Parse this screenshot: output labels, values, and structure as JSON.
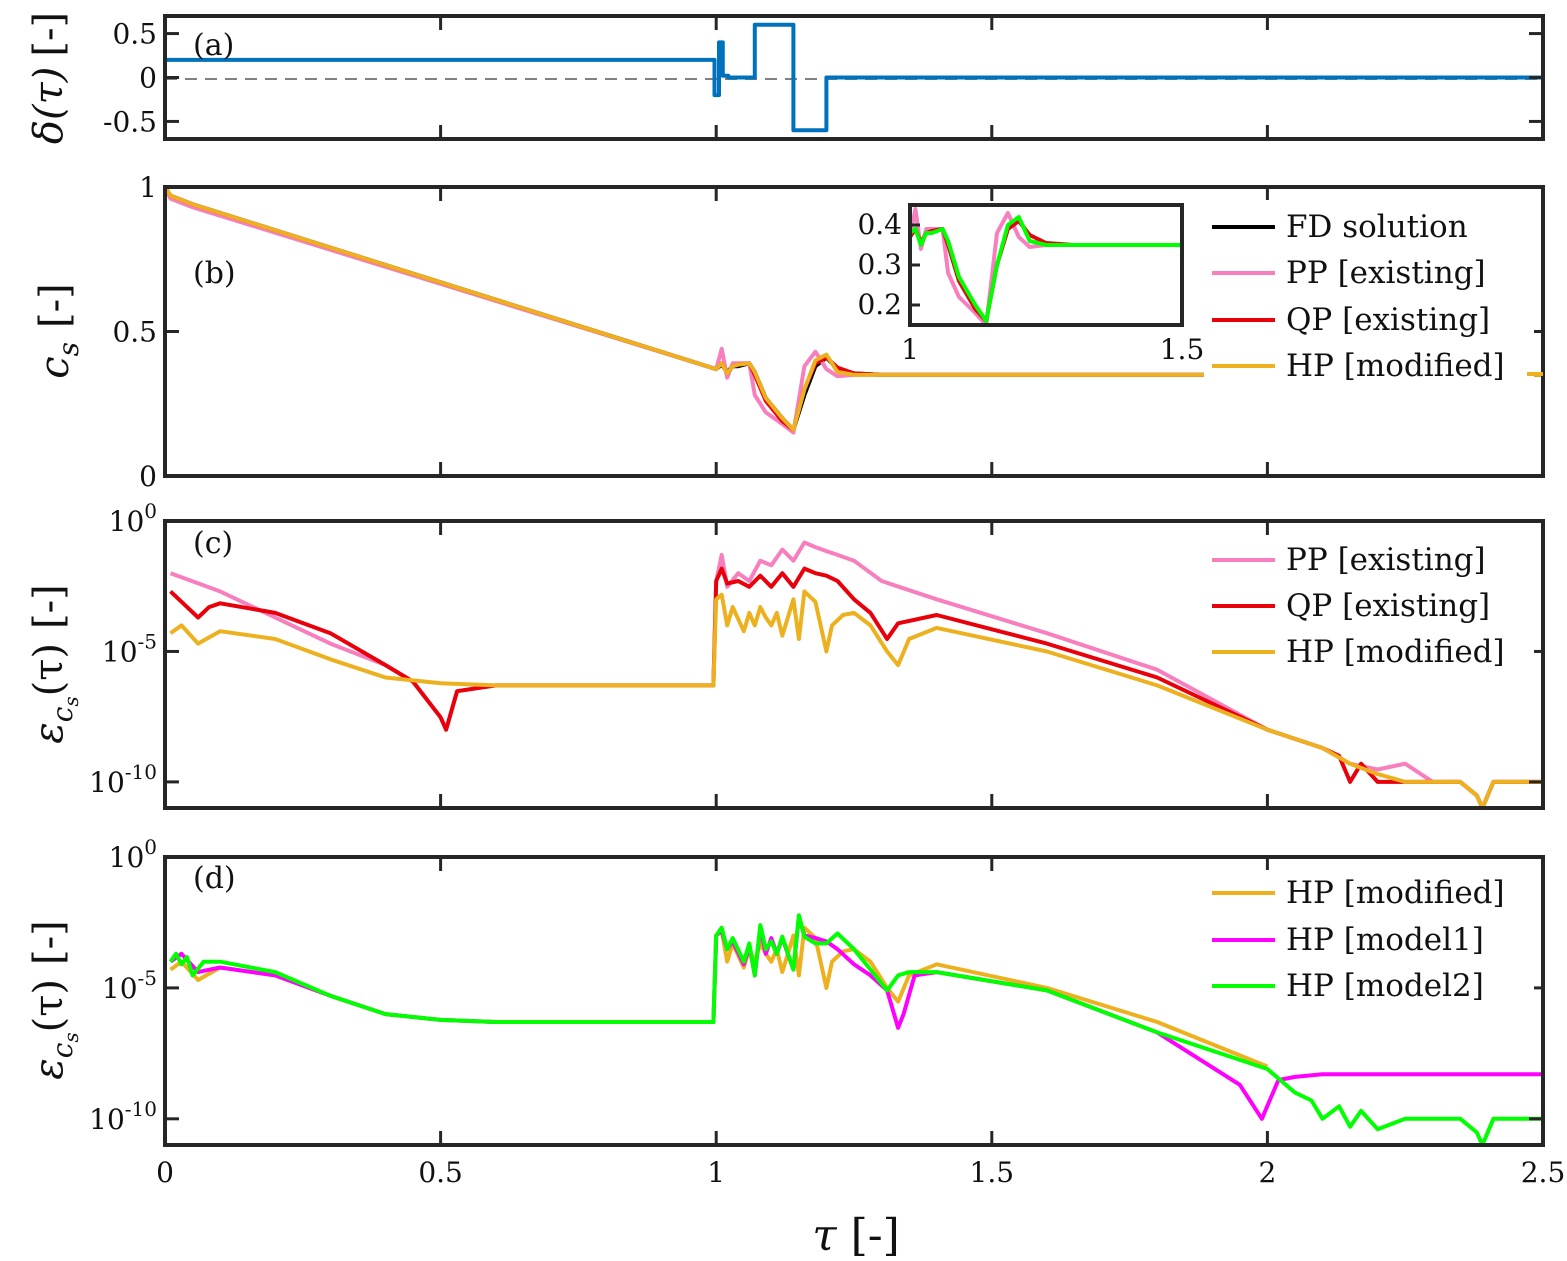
{
  "colors": {
    "fd": "#000000",
    "pp": "#f77fbe",
    "qp": "#e8000b",
    "hp": "#edb120",
    "model1": "#ff00ff",
    "model2": "#00ff00",
    "delta": "#0072bd",
    "axis": "#262626",
    "zero_line": "#808080"
  },
  "xaxis": {
    "label_sym": "τ",
    "label_unit": "[-]",
    "range": [
      0,
      2.5
    ],
    "ticks": [
      "0",
      "0.5",
      "1",
      "1.5",
      "2",
      "2.5"
    ]
  },
  "chart_data": [
    {
      "type": "line",
      "panel_label": "(a)",
      "ylabel": "δ(τ) [-]",
      "ylabel_sym": "δ(τ)",
      "ylabel_unit": "[-]",
      "ylim": [
        -0.7,
        0.7
      ],
      "yticks": [
        "0.5",
        "0",
        "-0.5"
      ],
      "reference_line": 0,
      "series": [
        {
          "id": "delta",
          "x": [
            0,
            0.997,
            0.997,
            1.005,
            1.005,
            1.012,
            1.012,
            1.022,
            1.022,
            1.07,
            1.07,
            1.14,
            1.14,
            1.2,
            1.2,
            2.5
          ],
          "y": [
            0.2,
            0.2,
            -0.2,
            -0.2,
            0.4,
            0.4,
            0.02,
            0.02,
            0.0,
            0.0,
            0.6,
            0.6,
            -0.6,
            -0.6,
            0.0,
            0.0
          ]
        }
      ]
    },
    {
      "type": "line",
      "panel_label": "(b)",
      "ylabel": "c_s [-]",
      "ylabel_sym": "c",
      "ylabel_sub": "s",
      "ylabel_unit": "[-]",
      "ylim": [
        0,
        1
      ],
      "yticks": [
        "1",
        "0.5",
        "0"
      ],
      "series": [
        {
          "id": "fd",
          "name": "FD solution",
          "x": [
            0,
            0.01,
            0.05,
            1.0,
            1.01,
            1.02,
            1.03,
            1.04,
            1.06,
            1.07,
            1.09,
            1.12,
            1.14,
            1.16,
            1.18,
            1.2,
            1.22,
            1.25,
            1.3,
            2.5
          ],
          "y": [
            1.0,
            0.97,
            0.94,
            0.37,
            0.385,
            0.36,
            0.38,
            0.38,
            0.39,
            0.36,
            0.27,
            0.2,
            0.16,
            0.28,
            0.38,
            0.41,
            0.37,
            0.355,
            0.35,
            0.35
          ]
        },
        {
          "id": "pp",
          "name": "PP [existing]",
          "x": [
            0,
            0.01,
            0.05,
            1.0,
            1.01,
            1.02,
            1.03,
            1.04,
            1.06,
            1.07,
            1.09,
            1.12,
            1.14,
            1.16,
            1.18,
            1.2,
            1.22,
            1.25,
            1.3,
            2.5
          ],
          "y": [
            1.0,
            0.96,
            0.93,
            0.37,
            0.44,
            0.34,
            0.39,
            0.39,
            0.39,
            0.28,
            0.22,
            0.18,
            0.15,
            0.38,
            0.43,
            0.37,
            0.345,
            0.35,
            0.35,
            0.35
          ]
        },
        {
          "id": "qp",
          "name": "QP [existing]",
          "x": [
            0,
            0.01,
            0.05,
            1.0,
            1.01,
            1.02,
            1.03,
            1.04,
            1.06,
            1.07,
            1.09,
            1.12,
            1.14,
            1.16,
            1.18,
            1.2,
            1.22,
            1.25,
            1.3,
            2.5
          ],
          "y": [
            1.0,
            0.97,
            0.94,
            0.37,
            0.39,
            0.355,
            0.38,
            0.385,
            0.39,
            0.35,
            0.26,
            0.19,
            0.16,
            0.3,
            0.39,
            0.41,
            0.375,
            0.355,
            0.35,
            0.35
          ]
        },
        {
          "id": "hp",
          "name": "HP [modified]",
          "x": [
            0,
            0.01,
            0.05,
            1.0,
            1.01,
            1.02,
            1.03,
            1.04,
            1.06,
            1.07,
            1.09,
            1.12,
            1.14,
            1.16,
            1.18,
            1.2,
            1.22,
            1.25,
            1.3,
            2.5
          ],
          "y": [
            1.0,
            0.97,
            0.94,
            0.37,
            0.39,
            0.355,
            0.38,
            0.385,
            0.39,
            0.36,
            0.27,
            0.2,
            0.16,
            0.3,
            0.4,
            0.42,
            0.36,
            0.35,
            0.35,
            0.35
          ]
        }
      ],
      "inset": {
        "xlim": [
          1,
          1.5
        ],
        "ylim": [
          0.15,
          0.45
        ],
        "xticks": [
          "1",
          "1.5"
        ],
        "yticks": [
          "0.4",
          "0.3",
          "0.2"
        ],
        "series_ids": [
          "pp",
          "qp",
          "model2"
        ],
        "model2": {
          "x": [
            1.0,
            1.01,
            1.02,
            1.03,
            1.04,
            1.06,
            1.07,
            1.09,
            1.12,
            1.14,
            1.16,
            1.18,
            1.2,
            1.22,
            1.25,
            1.3,
            1.5
          ],
          "y": [
            0.38,
            0.39,
            0.35,
            0.38,
            0.38,
            0.39,
            0.36,
            0.27,
            0.2,
            0.16,
            0.3,
            0.4,
            0.42,
            0.36,
            0.35,
            0.35,
            0.35
          ]
        }
      }
    },
    {
      "type": "line",
      "panel_label": "(c)",
      "ylabel": "ε_cs(τ) [-]",
      "ylabel_sym": "ε",
      "ylabel_sub": "c",
      "ylabel_subsub": "s",
      "ylabel_arg": "(τ)",
      "ylabel_unit": "[-]",
      "yscale": "log",
      "ylim": [
        1e-11,
        1
      ],
      "yticks": [
        {
          "base": "10",
          "exp": "0"
        },
        {
          "base": "10",
          "exp": "-5"
        },
        {
          "base": "10",
          "exp": "-10"
        }
      ],
      "series": [
        {
          "id": "pp",
          "name": "PP [existing]",
          "x": [
            0.01,
            0.1,
            0.2,
            0.3,
            0.4,
            0.45,
            0.5,
            0.51,
            0.53,
            0.6,
            0.7,
            0.8,
            0.9,
            0.995,
            1.0,
            1.01,
            1.02,
            1.04,
            1.06,
            1.08,
            1.1,
            1.12,
            1.14,
            1.16,
            1.18,
            1.2,
            1.22,
            1.25,
            1.3,
            1.4,
            1.6,
            1.8,
            2.0,
            2.1,
            2.15,
            2.2,
            2.25,
            2.3,
            2.35,
            2.38,
            2.39,
            2.41,
            2.45,
            2.5
          ],
          "y": [
            0.01,
            0.002,
            0.0002,
            2e-05,
            3e-06,
            7e-07,
            3e-08,
            1e-08,
            3e-07,
            5e-07,
            5e-07,
            5e-07,
            5e-07,
            5e-07,
            0.005,
            0.05,
            0.003,
            0.01,
            0.005,
            0.03,
            0.02,
            0.08,
            0.03,
            0.15,
            0.1,
            0.07,
            0.05,
            0.03,
            0.005,
            0.001,
            5e-05,
            2e-06,
            1e-08,
            2e-09,
            5e-10,
            3e-10,
            5e-10,
            1e-10,
            1e-10,
            3e-11,
            1e-11,
            1e-10,
            1e-10,
            1e-10
          ]
        },
        {
          "id": "qp",
          "name": "QP [existing]",
          "x": [
            0.01,
            0.03,
            0.06,
            0.08,
            0.1,
            0.2,
            0.3,
            0.4,
            0.45,
            0.5,
            0.51,
            0.53,
            0.6,
            0.7,
            0.8,
            0.9,
            0.995,
            1.0,
            1.01,
            1.02,
            1.04,
            1.06,
            1.08,
            1.1,
            1.12,
            1.14,
            1.16,
            1.18,
            1.2,
            1.22,
            1.25,
            1.28,
            1.31,
            1.33,
            1.4,
            1.6,
            1.8,
            2.0,
            2.1,
            2.13,
            2.15,
            2.17,
            2.2,
            2.25,
            2.3,
            2.35,
            2.38,
            2.39,
            2.41,
            2.45,
            2.5
          ],
          "y": [
            0.002,
            0.0008,
            0.0002,
            0.0005,
            0.0007,
            0.0003,
            5e-05,
            3e-06,
            7e-07,
            3e-08,
            1e-08,
            3e-07,
            5e-07,
            5e-07,
            5e-07,
            5e-07,
            5e-07,
            0.005,
            0.015,
            0.004,
            0.005,
            0.003,
            0.008,
            0.003,
            0.01,
            0.003,
            0.015,
            0.01,
            0.008,
            0.005,
            0.001,
            0.0003,
            3e-05,
            0.00012,
            0.00025,
            2e-05,
            1e-06,
            1e-08,
            2e-09,
            1e-09,
            1e-10,
            5e-10,
            1e-10,
            1e-10,
            1e-10,
            1e-10,
            3e-11,
            1e-11,
            1e-10,
            1e-10,
            1e-10
          ]
        },
        {
          "id": "hp",
          "name": "HP [modified]",
          "x": [
            0.01,
            0.03,
            0.06,
            0.1,
            0.2,
            0.3,
            0.4,
            0.5,
            0.6,
            0.7,
            0.8,
            0.9,
            0.995,
            1.0,
            1.01,
            1.02,
            1.03,
            1.05,
            1.06,
            1.07,
            1.08,
            1.09,
            1.1,
            1.11,
            1.12,
            1.14,
            1.15,
            1.16,
            1.18,
            1.2,
            1.21,
            1.23,
            1.25,
            1.28,
            1.31,
            1.33,
            1.35,
            1.4,
            1.6,
            1.8,
            2.0,
            2.1,
            2.15,
            2.2,
            2.25,
            2.3,
            2.35,
            2.38,
            2.39,
            2.41,
            2.45,
            2.5
          ],
          "y": [
            5e-05,
            0.0001,
            2e-05,
            6e-05,
            3e-05,
            5e-06,
            1e-06,
            6e-07,
            5e-07,
            5e-07,
            5e-07,
            5e-07,
            5e-07,
            0.001,
            0.0015,
            0.0001,
            0.0005,
            6e-05,
            0.0003,
            0.0001,
            0.0005,
            0.0002,
            0.0001,
            0.0003,
            4e-05,
            0.001,
            3e-05,
            0.002,
            0.0008,
            1e-05,
            0.0001,
            0.00025,
            0.0003,
            0.0001,
            1e-05,
            3e-06,
            3e-05,
            8e-05,
            1e-05,
            5e-07,
            1e-08,
            2e-09,
            5e-10,
            2e-10,
            1e-10,
            1e-10,
            1e-10,
            3e-11,
            1e-11,
            1e-10,
            1e-10,
            1e-10
          ]
        }
      ]
    },
    {
      "type": "line",
      "panel_label": "(d)",
      "ylabel": "ε_cs(τ) [-]",
      "ylabel_sym": "ε",
      "ylabel_sub": "c",
      "ylabel_subsub": "s",
      "ylabel_arg": "(τ)",
      "ylabel_unit": "[-]",
      "yscale": "log",
      "ylim": [
        1e-11,
        1
      ],
      "yticks": [
        {
          "base": "10",
          "exp": "0"
        },
        {
          "base": "10",
          "exp": "-5"
        },
        {
          "base": "10",
          "exp": "-10"
        }
      ],
      "series": [
        {
          "id": "hp",
          "name": "HP [modified]",
          "x": [
            0.01,
            0.03,
            0.06,
            0.1,
            0.2,
            0.3,
            0.4,
            0.5,
            0.6,
            0.7,
            0.8,
            0.9,
            0.995,
            1.0,
            1.01,
            1.02,
            1.03,
            1.05,
            1.06,
            1.07,
            1.08,
            1.09,
            1.1,
            1.11,
            1.12,
            1.14,
            1.15,
            1.16,
            1.18,
            1.2,
            1.21,
            1.23,
            1.25,
            1.28,
            1.31,
            1.33,
            1.35,
            1.4,
            1.6,
            1.8,
            2.0
          ],
          "y": [
            5e-05,
            0.0001,
            2e-05,
            6e-05,
            3e-05,
            5e-06,
            1e-06,
            6e-07,
            5e-07,
            5e-07,
            5e-07,
            5e-07,
            5e-07,
            0.001,
            0.0015,
            0.0001,
            0.0005,
            6e-05,
            0.0003,
            0.0001,
            0.0005,
            0.0002,
            0.0001,
            0.0003,
            4e-05,
            0.001,
            3e-05,
            0.002,
            0.0008,
            1e-05,
            0.0001,
            0.00025,
            0.0003,
            0.0001,
            1e-05,
            3e-06,
            3e-05,
            8e-05,
            1e-05,
            5e-07,
            1e-08
          ]
        },
        {
          "id": "model1",
          "name": "HP [model1]",
          "x": [
            0.01,
            0.03,
            0.06,
            0.1,
            0.2,
            0.3,
            0.4,
            0.5,
            0.6,
            0.7,
            0.8,
            0.9,
            0.995,
            1.0,
            1.01,
            1.02,
            1.03,
            1.05,
            1.06,
            1.07,
            1.08,
            1.09,
            1.1,
            1.11,
            1.12,
            1.14,
            1.15,
            1.16,
            1.18,
            1.2,
            1.22,
            1.25,
            1.28,
            1.31,
            1.33,
            1.34,
            1.36,
            1.4,
            1.6,
            1.8,
            1.95,
            1.99,
            2.02,
            2.05,
            2.1,
            2.2,
            2.3,
            2.4,
            2.5
          ],
          "y": [
            0.0001,
            0.0002,
            4e-05,
            6e-05,
            3e-05,
            5e-06,
            1e-06,
            6e-07,
            5e-07,
            5e-07,
            5e-07,
            5e-07,
            5e-07,
            0.001,
            0.0015,
            0.0003,
            0.0006,
            8e-05,
            0.0004,
            3e-05,
            0.002,
            0.0002,
            0.0008,
            0.0002,
            0.0008,
            5e-05,
            0.005,
            0.001,
            0.0008,
            0.0006,
            0.0003,
            8e-05,
            3e-05,
            8e-06,
            3e-07,
            1e-06,
            3e-05,
            4e-05,
            8e-06,
            2e-07,
            2e-09,
            1e-10,
            3e-09,
            4e-09,
            5e-09,
            5e-09,
            5e-09,
            5e-09,
            5e-09
          ]
        },
        {
          "id": "model2",
          "name": "HP [model2]",
          "x": [
            0.01,
            0.02,
            0.03,
            0.04,
            0.05,
            0.07,
            0.1,
            0.2,
            0.3,
            0.4,
            0.5,
            0.6,
            0.7,
            0.8,
            0.9,
            0.995,
            1.0,
            1.01,
            1.02,
            1.03,
            1.05,
            1.06,
            1.07,
            1.08,
            1.09,
            1.1,
            1.11,
            1.12,
            1.14,
            1.15,
            1.16,
            1.18,
            1.2,
            1.22,
            1.25,
            1.28,
            1.31,
            1.33,
            1.35,
            1.4,
            1.6,
            1.8,
            2.0,
            2.05,
            2.08,
            2.1,
            2.13,
            2.15,
            2.17,
            2.2,
            2.25,
            2.3,
            2.35,
            2.38,
            2.39,
            2.41,
            2.45,
            2.5
          ],
          "y": [
            0.0001,
            0.0002,
            8e-05,
            0.00015,
            3e-05,
            0.0001,
            0.0001,
            4e-05,
            5e-06,
            1e-06,
            6e-07,
            5e-07,
            5e-07,
            5e-07,
            5e-07,
            5e-07,
            0.001,
            0.002,
            0.0003,
            0.0008,
            0.0001,
            0.0005,
            3e-05,
            0.0025,
            0.0003,
            0.0006,
            0.0002,
            0.0009,
            5e-05,
            0.006,
            0.0009,
            0.0005,
            0.0005,
            0.0012,
            0.0003,
            5e-05,
            8e-06,
            3e-05,
            4e-05,
            4e-05,
            8e-06,
            2e-07,
            8e-09,
            1e-09,
            5e-10,
            1e-10,
            3e-10,
            5e-11,
            2e-10,
            4e-11,
            1e-10,
            1e-10,
            1e-10,
            3e-11,
            1e-11,
            1e-10,
            1e-10,
            1e-10
          ]
        }
      ]
    }
  ]
}
